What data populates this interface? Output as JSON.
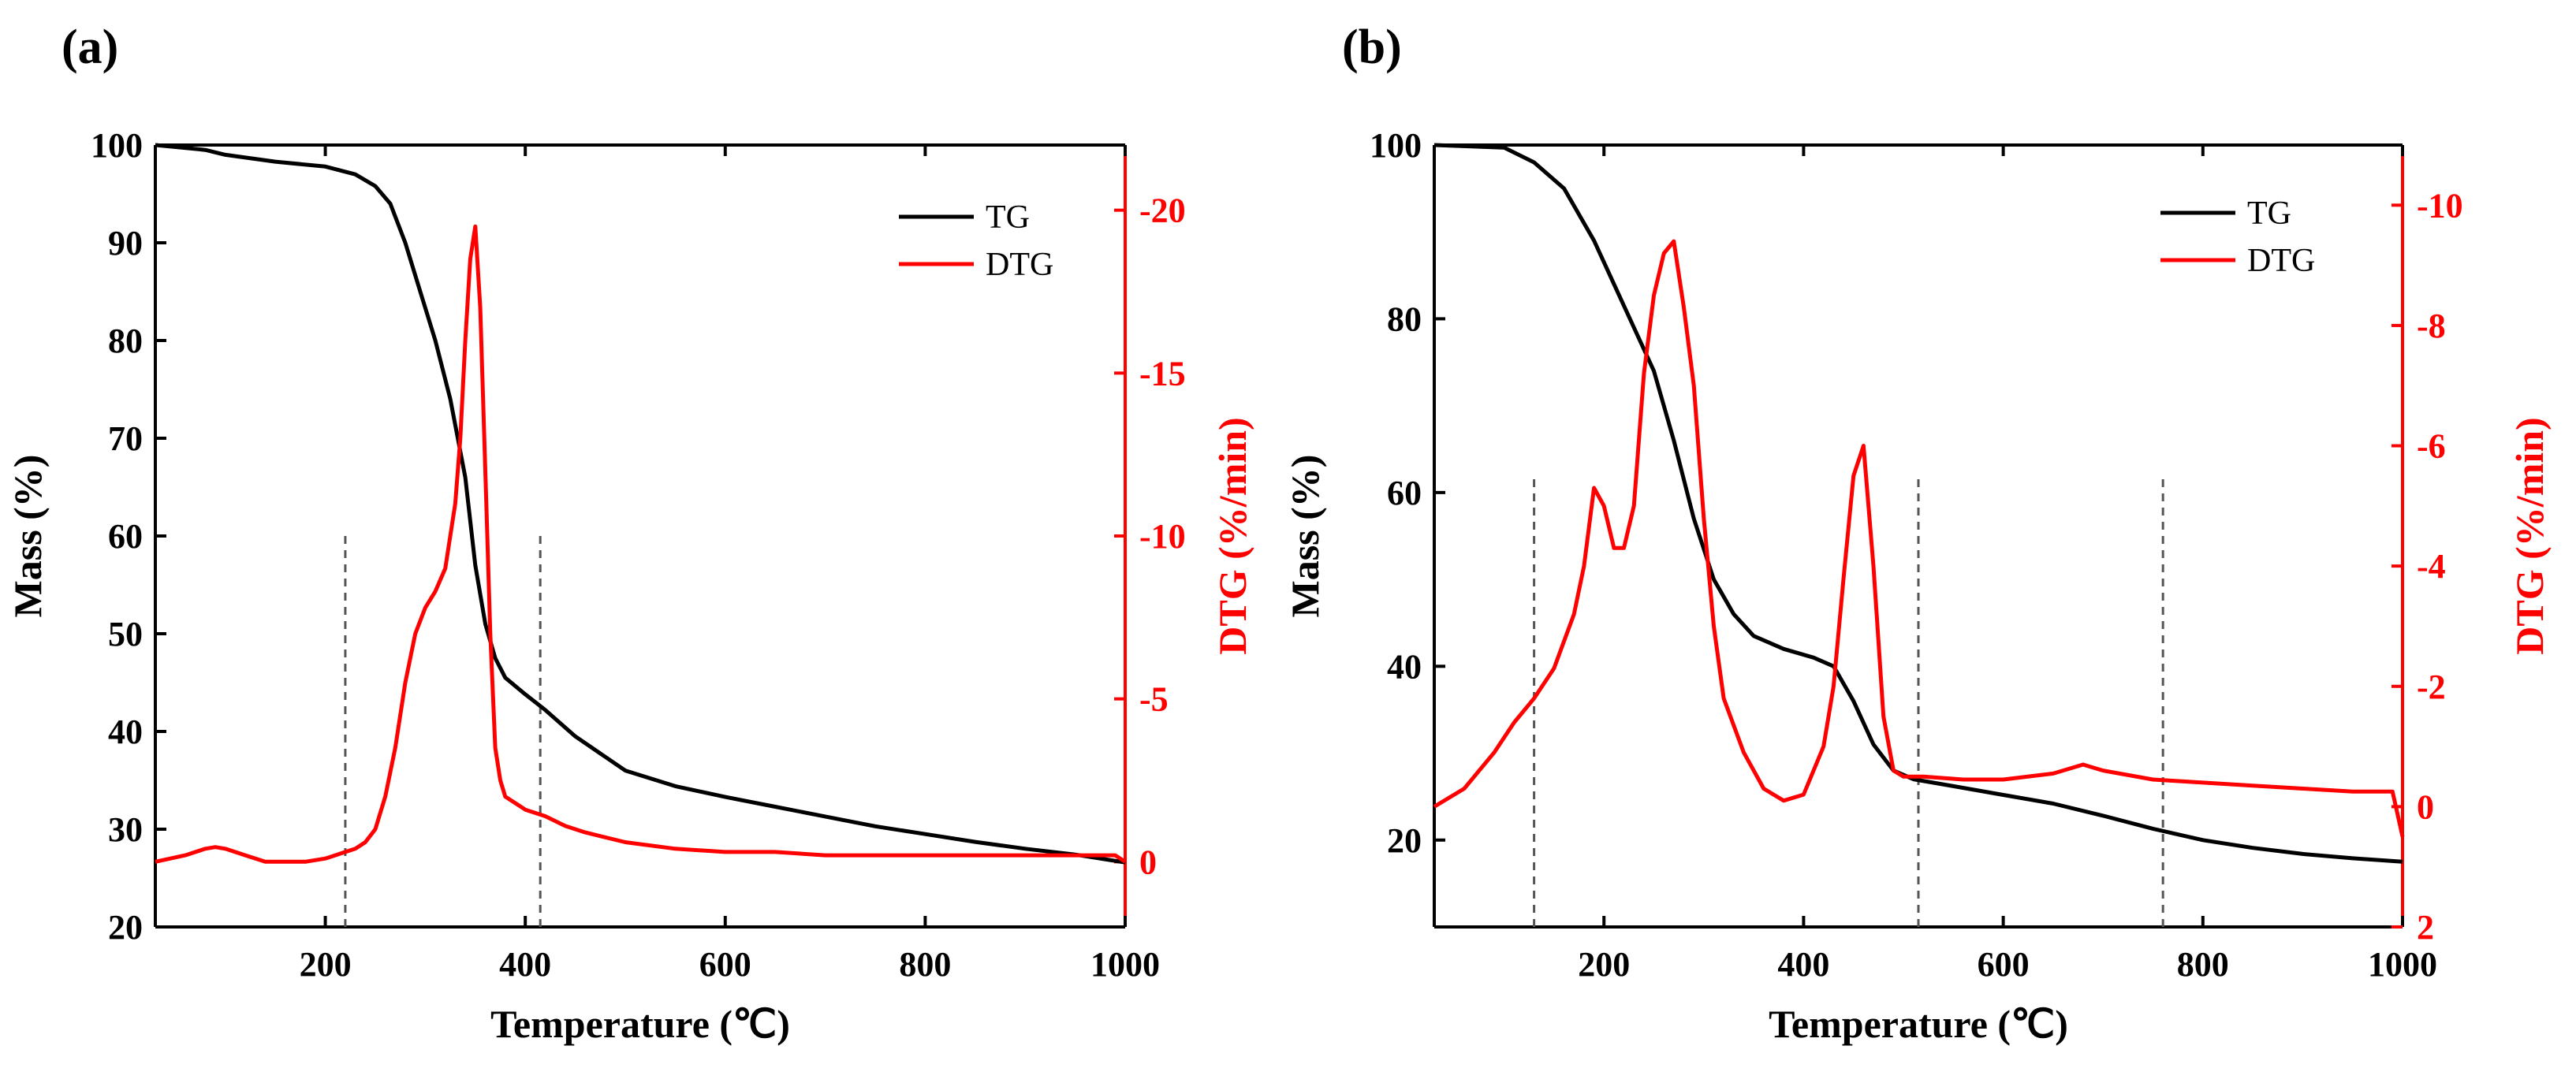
{
  "chart_data": [
    {
      "type": "line",
      "panel_label": "(a)",
      "xlabel": "Temperature (℃)",
      "ylabel": "Mass (%)",
      "y2label": "DTG (%/min)",
      "xlim": [
        30,
        1000
      ],
      "ylim": [
        20,
        100
      ],
      "y2lim": [
        2,
        -22
      ],
      "y2_inverted": true,
      "xticks": [
        200,
        400,
        600,
        800,
        1000
      ],
      "yticks": [
        20,
        30,
        40,
        50,
        60,
        70,
        80,
        90,
        100
      ],
      "y2ticks": [
        0,
        -5,
        -10,
        -15,
        -20
      ],
      "legend": [
        "TG",
        "DTG"
      ],
      "legend_position": "top-right",
      "dashed_lines_x": [
        220,
        415
      ],
      "dashed_lines_y_top": 60,
      "series": [
        {
          "name": "TG",
          "axis": "left",
          "color": "#000000",
          "x": [
            30,
            80,
            100,
            150,
            200,
            230,
            250,
            265,
            280,
            295,
            310,
            325,
            340,
            350,
            360,
            370,
            380,
            400,
            420,
            450,
            500,
            550,
            600,
            650,
            700,
            750,
            800,
            850,
            900,
            950,
            1000
          ],
          "y": [
            100,
            99.5,
            99,
            98.3,
            97.8,
            97,
            95.8,
            94,
            90,
            85,
            80,
            74,
            66,
            57,
            51,
            47.5,
            45.5,
            43.8,
            42.2,
            39.5,
            36,
            34.4,
            33.3,
            32.3,
            31.3,
            30.3,
            29.5,
            28.7,
            28,
            27.4,
            26.6
          ]
        },
        {
          "name": "DTG",
          "axis": "right",
          "color": "#ff0000",
          "x": [
            30,
            60,
            80,
            90,
            100,
            120,
            140,
            160,
            180,
            200,
            210,
            220,
            230,
            240,
            250,
            260,
            270,
            280,
            290,
            300,
            310,
            320,
            330,
            335,
            340,
            345,
            350,
            355,
            360,
            365,
            370,
            375,
            380,
            390,
            400,
            420,
            440,
            460,
            500,
            550,
            600,
            650,
            700,
            750,
            800,
            850,
            900,
            950,
            990,
            1000
          ],
          "y": [
            0,
            -0.2,
            -0.4,
            -0.45,
            -0.4,
            -0.2,
            0,
            0,
            0,
            -0.1,
            -0.2,
            -0.3,
            -0.4,
            -0.6,
            -1,
            -2,
            -3.5,
            -5.5,
            -7,
            -7.8,
            -8.3,
            -9,
            -11,
            -13,
            -16,
            -18.5,
            -19.5,
            -17,
            -12,
            -7,
            -3.5,
            -2.5,
            -2,
            -1.8,
            -1.6,
            -1.4,
            -1.1,
            -0.9,
            -0.6,
            -0.4,
            -0.3,
            -0.3,
            -0.2,
            -0.2,
            -0.2,
            -0.2,
            -0.2,
            -0.2,
            -0.2,
            0
          ]
        }
      ]
    },
    {
      "type": "line",
      "panel_label": "(b)",
      "xlabel": "Temperature (℃)",
      "ylabel": "Mass (%)",
      "y2label": "DTG (%/min)",
      "xlim": [
        30,
        1000
      ],
      "ylim": [
        10,
        100
      ],
      "y2lim": [
        2,
        -11
      ],
      "y2_inverted": true,
      "xticks": [
        200,
        400,
        600,
        800,
        1000
      ],
      "yticks": [
        20,
        40,
        60,
        80,
        100
      ],
      "y2ticks": [
        2,
        0,
        -2,
        -4,
        -6,
        -8,
        -10
      ],
      "legend": [
        "TG",
        "DTG"
      ],
      "legend_position": "top-right",
      "dashed_lines_x": [
        130,
        515,
        760
      ],
      "dashed_lines_y_top": 62,
      "series": [
        {
          "name": "TG",
          "axis": "left",
          "color": "#000000",
          "x": [
            30,
            100,
            130,
            160,
            190,
            210,
            230,
            250,
            270,
            290,
            310,
            330,
            350,
            380,
            410,
            430,
            450,
            470,
            490,
            510,
            550,
            600,
            650,
            700,
            750,
            800,
            850,
            900,
            950,
            1000
          ],
          "y": [
            100,
            99.7,
            98,
            95,
            89,
            84,
            79,
            74,
            66,
            57,
            50,
            46,
            43.5,
            42,
            41,
            40,
            36,
            31,
            28,
            27,
            26.2,
            25.2,
            24.2,
            22.8,
            21.3,
            20,
            19.1,
            18.4,
            17.9,
            17.5
          ]
        },
        {
          "name": "DTG",
          "axis": "right",
          "color": "#ff0000",
          "x": [
            30,
            60,
            90,
            110,
            130,
            150,
            170,
            180,
            190,
            200,
            210,
            220,
            230,
            240,
            250,
            260,
            270,
            280,
            290,
            300,
            310,
            320,
            340,
            360,
            380,
            400,
            420,
            430,
            440,
            450,
            460,
            470,
            480,
            490,
            500,
            520,
            560,
            600,
            650,
            680,
            700,
            750,
            800,
            850,
            900,
            950,
            990,
            1000
          ],
          "y": [
            0,
            -0.3,
            -0.9,
            -1.4,
            -1.8,
            -2.3,
            -3.2,
            -4,
            -5.3,
            -5,
            -4.3,
            -4.3,
            -5,
            -7.2,
            -8.5,
            -9.2,
            -9.4,
            -8.3,
            -7,
            -4.8,
            -3,
            -1.8,
            -0.9,
            -0.3,
            -0.1,
            -0.2,
            -1,
            -2,
            -3.8,
            -5.5,
            -6,
            -4,
            -1.5,
            -0.6,
            -0.5,
            -0.5,
            -0.45,
            -0.45,
            -0.55,
            -0.7,
            -0.6,
            -0.45,
            -0.4,
            -0.35,
            -0.3,
            -0.25,
            -0.25,
            0.5
          ]
        }
      ]
    }
  ]
}
